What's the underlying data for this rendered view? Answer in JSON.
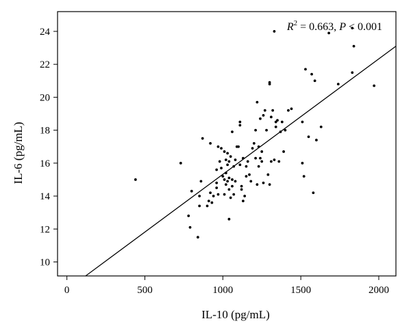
{
  "chart_data": {
    "type": "scatter",
    "xlabel": "IL-10 (pg/mL)",
    "ylabel": "IL-6 (pg/mL)",
    "xlim": [
      -60,
      2110
    ],
    "ylim": [
      9.15,
      25.2
    ],
    "xticks": [
      0,
      500,
      1000,
      1500,
      2000
    ],
    "yticks": [
      10,
      12,
      14,
      16,
      18,
      20,
      22,
      24
    ],
    "grid": false,
    "annotation": {
      "r2_symbol": "R",
      "r2_exp": "2",
      "r2_value": " = 0.663, ",
      "p_symbol": "P",
      "p_value": " < 0.001"
    },
    "regression_line": {
      "x": [
        120,
        2110
      ],
      "y": [
        9.15,
        23.1
      ]
    },
    "points": [
      [
        440,
        15.0
      ],
      [
        730,
        16.0
      ],
      [
        780,
        12.8
      ],
      [
        790,
        12.1
      ],
      [
        800,
        14.3
      ],
      [
        840,
        11.5
      ],
      [
        850,
        13.4
      ],
      [
        850,
        14.0
      ],
      [
        860,
        14.9
      ],
      [
        870,
        17.5
      ],
      [
        900,
        13.4
      ],
      [
        910,
        13.7
      ],
      [
        920,
        14.2
      ],
      [
        920,
        17.2
      ],
      [
        930,
        13.6
      ],
      [
        940,
        14.0
      ],
      [
        960,
        14.5
      ],
      [
        960,
        14.8
      ],
      [
        960,
        15.6
      ],
      [
        970,
        14.1
      ],
      [
        970,
        17.0
      ],
      [
        980,
        16.1
      ],
      [
        990,
        15.7
      ],
      [
        990,
        16.9
      ],
      [
        1000,
        15.2
      ],
      [
        1010,
        14.1
      ],
      [
        1010,
        15.0
      ],
      [
        1010,
        16.7
      ],
      [
        1020,
        14.7
      ],
      [
        1020,
        15.4
      ],
      [
        1020,
        16.2
      ],
      [
        1030,
        14.9
      ],
      [
        1030,
        15.9
      ],
      [
        1030,
        16.6
      ],
      [
        1040,
        12.6
      ],
      [
        1040,
        14.4
      ],
      [
        1040,
        15.1
      ],
      [
        1040,
        16.1
      ],
      [
        1050,
        13.9
      ],
      [
        1050,
        16.4
      ],
      [
        1060,
        14.6
      ],
      [
        1060,
        15.0
      ],
      [
        1060,
        17.9
      ],
      [
        1070,
        14.1
      ],
      [
        1070,
        15.8
      ],
      [
        1080,
        14.9
      ],
      [
        1080,
        16.2
      ],
      [
        1090,
        17.0
      ],
      [
        1100,
        17.0
      ],
      [
        1110,
        15.9
      ],
      [
        1110,
        18.3
      ],
      [
        1110,
        18.5
      ],
      [
        1120,
        14.4
      ],
      [
        1120,
        14.6
      ],
      [
        1130,
        13.7
      ],
      [
        1130,
        16.3
      ],
      [
        1140,
        14.0
      ],
      [
        1150,
        15.2
      ],
      [
        1150,
        15.8
      ],
      [
        1160,
        16.1
      ],
      [
        1170,
        15.3
      ],
      [
        1180,
        14.9
      ],
      [
        1190,
        16.9
      ],
      [
        1200,
        17.2
      ],
      [
        1210,
        16.3
      ],
      [
        1210,
        18.0
      ],
      [
        1220,
        14.7
      ],
      [
        1220,
        19.7
      ],
      [
        1230,
        15.8
      ],
      [
        1230,
        17.0
      ],
      [
        1240,
        16.3
      ],
      [
        1240,
        18.7
      ],
      [
        1250,
        16.1
      ],
      [
        1250,
        16.7
      ],
      [
        1260,
        14.8
      ],
      [
        1260,
        18.9
      ],
      [
        1270,
        19.2
      ],
      [
        1280,
        18.0
      ],
      [
        1290,
        15.3
      ],
      [
        1300,
        14.7
      ],
      [
        1300,
        20.8
      ],
      [
        1300,
        20.9
      ],
      [
        1310,
        16.1
      ],
      [
        1310,
        18.8
      ],
      [
        1320,
        19.2
      ],
      [
        1330,
        16.2
      ],
      [
        1330,
        24.0
      ],
      [
        1340,
        18.2
      ],
      [
        1340,
        18.5
      ],
      [
        1350,
        18.6
      ],
      [
        1360,
        16.1
      ],
      [
        1370,
        17.9
      ],
      [
        1380,
        18.5
      ],
      [
        1390,
        16.7
      ],
      [
        1400,
        18.0
      ],
      [
        1420,
        19.2
      ],
      [
        1440,
        19.3
      ],
      [
        1510,
        16.0
      ],
      [
        1510,
        18.5
      ],
      [
        1520,
        15.2
      ],
      [
        1530,
        21.7
      ],
      [
        1550,
        17.6
      ],
      [
        1570,
        21.4
      ],
      [
        1580,
        14.2
      ],
      [
        1590,
        21.0
      ],
      [
        1600,
        17.4
      ],
      [
        1630,
        18.2
      ],
      [
        1680,
        23.9
      ],
      [
        1740,
        20.8
      ],
      [
        1830,
        21.5
      ],
      [
        1830,
        24.2
      ],
      [
        1840,
        23.1
      ],
      [
        1970,
        20.7
      ]
    ]
  }
}
